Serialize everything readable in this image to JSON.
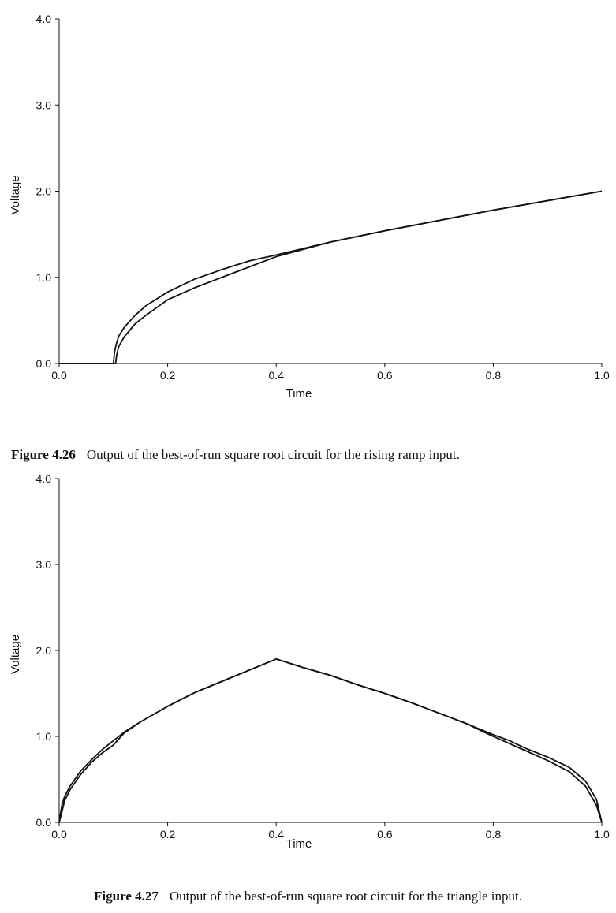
{
  "chart_data": [
    {
      "type": "line",
      "title": "",
      "xlabel": "Time",
      "ylabel": "Voltage",
      "xlim": [
        0.0,
        1.0
      ],
      "ylim": [
        0.0,
        4.0
      ],
      "xticks": [
        "0.0",
        "0.2",
        "0.4",
        "0.6",
        "0.8",
        "1.0"
      ],
      "yticks": [
        "0.0",
        "1.0",
        "2.0",
        "3.0",
        "4.0"
      ],
      "grid": false,
      "series": [
        {
          "x": [
            0.0,
            0.1,
            0.102,
            0.105,
            0.11,
            0.12,
            0.14,
            0.16,
            0.2,
            0.25,
            0.3,
            0.35,
            0.4,
            0.5,
            0.6,
            0.7,
            0.8,
            0.9,
            1.0
          ],
          "y": [
            0.0,
            0.0,
            0.13,
            0.22,
            0.32,
            0.42,
            0.56,
            0.67,
            0.83,
            0.98,
            1.09,
            1.19,
            1.26,
            1.41,
            1.54,
            1.66,
            1.78,
            1.89,
            2.0
          ]
        },
        {
          "x": [
            0.0,
            0.104,
            0.106,
            0.11,
            0.12,
            0.14,
            0.16,
            0.2,
            0.25,
            0.3,
            0.35,
            0.4,
            0.5,
            0.6,
            0.7,
            0.8,
            0.9,
            1.0
          ],
          "y": [
            0.0,
            0.0,
            0.1,
            0.2,
            0.31,
            0.46,
            0.56,
            0.74,
            0.88,
            1.0,
            1.12,
            1.24,
            1.41,
            1.54,
            1.66,
            1.78,
            1.89,
            2.0
          ]
        }
      ]
    },
    {
      "type": "line",
      "title": "",
      "xlabel": "Time",
      "ylabel": "Voltage",
      "xlim": [
        0.0,
        1.0
      ],
      "ylim": [
        0.0,
        4.0
      ],
      "xticks": [
        "0.0",
        "0.2",
        "0.4",
        "0.6",
        "0.8",
        "1.0"
      ],
      "yticks": [
        "0.0",
        "1.0",
        "2.0",
        "3.0",
        "4.0"
      ],
      "grid": false,
      "series": [
        {
          "x": [
            0.0,
            0.005,
            0.01,
            0.02,
            0.04,
            0.06,
            0.08,
            0.1,
            0.12,
            0.15,
            0.2,
            0.25,
            0.3,
            0.35,
            0.4,
            0.45,
            0.5,
            0.55,
            0.6,
            0.65,
            0.7,
            0.75,
            0.8,
            0.85,
            0.9,
            0.94,
            0.97,
            0.99,
            1.0
          ],
          "y": [
            0.0,
            0.2,
            0.3,
            0.42,
            0.6,
            0.73,
            0.85,
            0.95,
            1.05,
            1.17,
            1.35,
            1.51,
            1.64,
            1.77,
            1.9,
            1.8,
            1.71,
            1.6,
            1.5,
            1.39,
            1.27,
            1.15,
            1.0,
            0.86,
            0.72,
            0.59,
            0.42,
            0.2,
            0.0
          ]
        },
        {
          "x": [
            0.0,
            0.005,
            0.01,
            0.02,
            0.04,
            0.06,
            0.08,
            0.1,
            0.12,
            0.15,
            0.2,
            0.25,
            0.3,
            0.35,
            0.4,
            0.45,
            0.5,
            0.55,
            0.6,
            0.65,
            0.7,
            0.75,
            0.8,
            0.83,
            0.86,
            0.9,
            0.94,
            0.97,
            0.99,
            1.0
          ],
          "y": [
            0.0,
            0.12,
            0.25,
            0.38,
            0.56,
            0.7,
            0.81,
            0.9,
            1.04,
            1.17,
            1.35,
            1.51,
            1.64,
            1.77,
            1.9,
            1.8,
            1.71,
            1.6,
            1.5,
            1.39,
            1.27,
            1.15,
            1.02,
            0.95,
            0.86,
            0.76,
            0.64,
            0.48,
            0.27,
            0.0
          ]
        }
      ]
    }
  ],
  "captions": [
    {
      "number": "Figure 4.26",
      "text": "Output of the best-of-run square root circuit for the rising ramp input."
    },
    {
      "number": "Figure 4.27",
      "text": "Output of the best-of-run square root circuit for the triangle input."
    }
  ]
}
